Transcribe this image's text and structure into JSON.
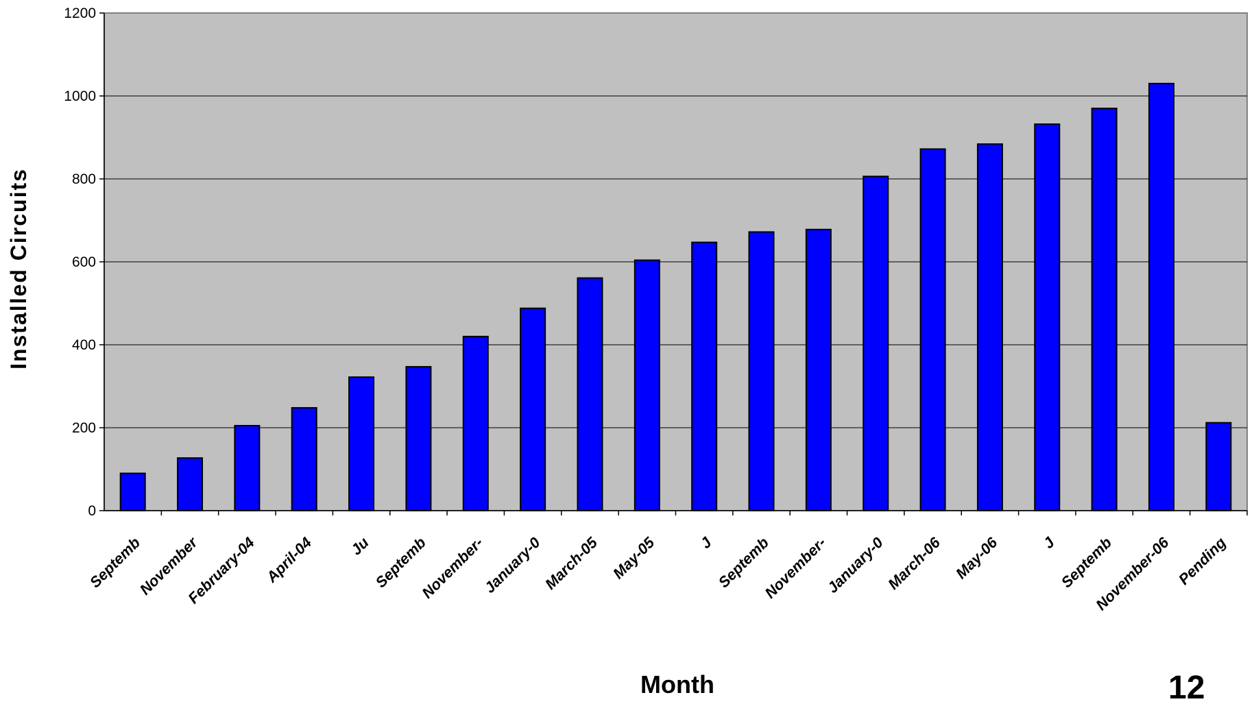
{
  "chart_data": {
    "type": "bar",
    "title": "",
    "xlabel": "Month",
    "ylabel": "Installed Circuits",
    "ylim": [
      0,
      1200
    ],
    "yticks": [
      0,
      200,
      400,
      600,
      800,
      1000,
      1200
    ],
    "grid": true,
    "legend": "none",
    "categories": [
      "Septemb",
      "November",
      "February-04",
      "April-04",
      "Ju",
      "Septemb",
      "November-",
      "January-0",
      "March-05",
      "May-05",
      "J",
      "Septemb",
      "November-",
      "January-0",
      "March-06",
      "May-06",
      "J",
      "Septemb",
      "November-06",
      "Pending"
    ],
    "values": [
      90,
      127,
      205,
      248,
      322,
      347,
      420,
      488,
      561,
      604,
      647,
      672,
      678,
      806,
      872,
      884,
      932,
      970,
      1030,
      212
    ],
    "colors": {
      "bar": "#0000ff",
      "plot_bg": "#c0c0c0",
      "grid": "#000000"
    }
  },
  "page_number": "12"
}
